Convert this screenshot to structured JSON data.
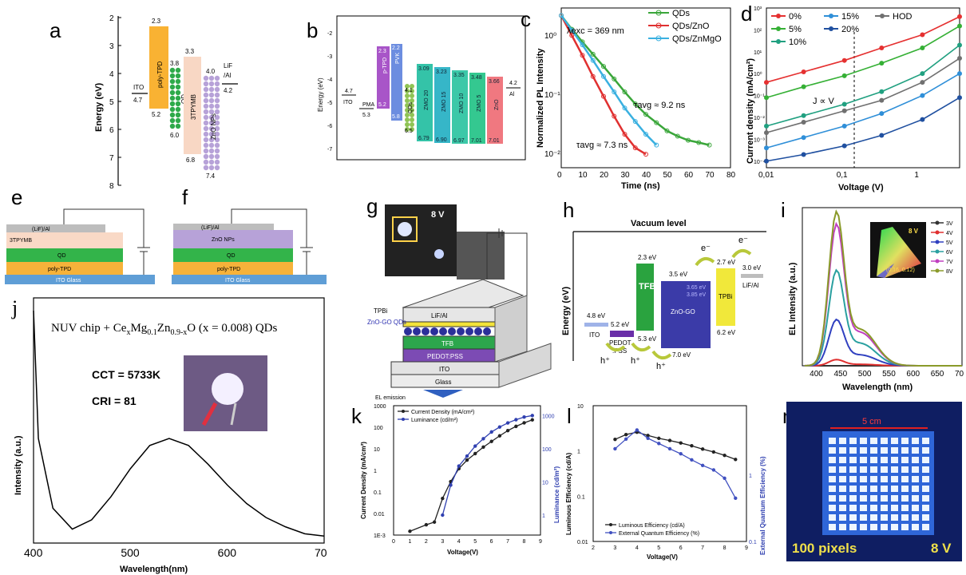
{
  "panels": {
    "a": {
      "letter": "a",
      "ylabel": "Energy (eV)",
      "ticks": [
        "2",
        "3",
        "4",
        "5",
        "6",
        "7",
        "8"
      ],
      "layers": [
        {
          "name": "ITO",
          "top": "4.7"
        },
        {
          "name": "poly-TPD",
          "top": "2.3",
          "bottom": "5.2"
        },
        {
          "name": "QD",
          "top": "3.8",
          "bottom": "6.0"
        },
        {
          "name": "3TPYMB",
          "top": "3.3",
          "bottom": "6.8"
        },
        {
          "name": "ZnO NPs",
          "top": "4.0",
          "bottom": "7.4"
        },
        {
          "name": "LiF\n/Al",
          "name1": "LiF",
          "name2": "/Al",
          "top": "4.2"
        }
      ]
    },
    "b": {
      "letter": "b",
      "ylabel": "Energy (eV)",
      "ticks": [
        "-2",
        "-3",
        "-4",
        "-5",
        "-6",
        "-7"
      ],
      "bars": [
        {
          "name": "ITO",
          "v1": "4.7"
        },
        {
          "name": "PMA",
          "v1": "5.3"
        },
        {
          "name": "p-TPD",
          "v1": "2.3",
          "v2": "5.2"
        },
        {
          "name": "PVK",
          "v1": "2.2",
          "v2": "5.8"
        },
        {
          "name": "QDs",
          "v1": "4.1",
          "v2": "6.5"
        },
        {
          "name": "ZMO 20",
          "v1": "3.09",
          "v2": "6.79"
        },
        {
          "name": "ZMO 15",
          "v1": "3.23",
          "v2": "6.90"
        },
        {
          "name": "ZMO 10",
          "v1": "3.35",
          "v2": "6.97"
        },
        {
          "name": "ZMO 5",
          "v1": "3.48",
          "v2": "7.01"
        },
        {
          "name": "ZnO",
          "v1": "3.66",
          "v2": "7.01"
        },
        {
          "name": "Al",
          "v1": "4.2"
        }
      ]
    },
    "c": {
      "letter": "c",
      "lambda": "λexc = 369 nm",
      "ylabel": "Normalized PL Intensity",
      "xlabel": "Time (ns)",
      "tau1": "τavg ≈ 9.2 ns",
      "tau2": "τavg ≈ 7.3 ns",
      "xticks": [
        "0",
        "10",
        "20",
        "30",
        "40",
        "50",
        "60",
        "70",
        "80"
      ],
      "yticks": [
        "10⁰",
        "10⁻¹",
        "10⁻²"
      ]
    },
    "d": {
      "letter": "d",
      "ylabel": "Current density (mA/cm²)",
      "xlabel": "Voltage (V)",
      "annot": "J ∝ V",
      "xticks": [
        "0,01",
        "0,1",
        "1"
      ],
      "yticks": [
        "10³",
        "10²",
        "10¹",
        "10⁰",
        "10⁻¹",
        "10⁻²",
        "10⁻³",
        "10⁻⁴"
      ]
    },
    "e": {
      "letter": "e",
      "layers": [
        "(LiF)/Al",
        "3TPYMB",
        "QD",
        "poly-TPD",
        "ITO Glass"
      ]
    },
    "f": {
      "letter": "f",
      "layers": [
        "(LiF)/Al",
        "ZnO NPs",
        "QD",
        "poly-TPD",
        "ITO Glass"
      ]
    },
    "g": {
      "letter": "g",
      "voltage": "8 V",
      "layers": [
        "LiF/Al",
        "TPBi",
        "ZnO-GO QDs",
        "TFB",
        "PEDOT:PSS",
        "ITO",
        "Glass"
      ],
      "emission": "EL emission"
    },
    "h": {
      "letter": "h",
      "title": "Vacuum  level",
      "ylabel": "Energy  (eV)",
      "levels": {
        "ito": "4.8 eV",
        "pedot_top": "5.2 eV",
        "tfb_top": "2.3 eV",
        "tfb_bot": "5.3 eV",
        "zno_top": "3.5 eV",
        "zno_mid1": "3.65 eV",
        "zno_mid2": "3.85 eV",
        "zno_bot": "7.0 eV",
        "tpbi_top": "2.7 eV",
        "tpbi_bot": "6.2 eV",
        "lif": "3.0 eV"
      },
      "names": {
        "ito": "ITO",
        "pedot": "PEDOT\n:PSS",
        "pedot1": "PEDOT",
        ":pss": ":PSS",
        "tfb": "TFB",
        "zno": "ZnO-GO",
        "tpbi": "TPBi",
        "lif": "LiF/Al"
      },
      "carriers": {
        "e": "e⁻",
        "h": "h⁺"
      }
    },
    "i": {
      "letter": "i",
      "ylabel": "EL Intensity (a.u.)",
      "xlabel": "Wavelength (nm)",
      "inset_voltage": "8 V",
      "cie": "(0.16, 0.12)",
      "xticks": [
        "400",
        "450",
        "500",
        "550",
        "600",
        "650",
        "70"
      ]
    },
    "j": {
      "letter": "j",
      "title": "NUV chip + CexMg0.1Zn0.9-xO (x = 0.008) QDs",
      "title_parts": {
        "a": "NUV chip + Ce",
        "b": "x",
        "c": "Mg",
        "d": "0.1",
        "e": "Zn",
        "f": "0.9-x",
        "g": "O (x = 0.008) QDs"
      },
      "cct": "CCT = 5733K",
      "cri": "CRI = 81",
      "ylabel": "Intensity (a.u.)",
      "xlabel": "Wavelength(nm)",
      "xticks": [
        "400",
        "500",
        "600",
        "70"
      ]
    },
    "k": {
      "letter": "k",
      "ylabel": "Current Density (mA/cm²)",
      "y2label": "Luminance (cd/m²)",
      "xlabel": "Voltage(V)",
      "yticks": [
        "1000",
        "100",
        "10",
        "1",
        "0.1",
        "0.01",
        "1E-3"
      ],
      "y2ticks": [
        "1000",
        "100",
        "10",
        "1"
      ],
      "xticks": [
        "0",
        "1",
        "2",
        "3",
        "4",
        "5",
        "6",
        "7",
        "8",
        "9"
      ]
    },
    "l": {
      "letter": "l",
      "ylabel": "Luminous Efficiency (cd/A)",
      "y2label": "External Quantum Efficiency (%)",
      "xlabel": "Voltage(V)",
      "yticks": [
        "10",
        "1",
        "0.1",
        "0.01"
      ],
      "y2ticks": [
        "1",
        "0.1"
      ],
      "xticks": [
        "2",
        "3",
        "4",
        "5",
        "6",
        "7",
        "8",
        "9"
      ]
    },
    "m": {
      "letter": "m",
      "size": "5 cm",
      "pixels": "100 pixels",
      "voltage": "8 V"
    }
  },
  "chart_data": [
    {
      "type": "line",
      "panel": "c",
      "xlabel": "Time (ns)",
      "ylabel": "Normalized PL Intensity",
      "yscale": "log",
      "xlim": [
        0,
        80
      ],
      "ylim": [
        0.005,
        1.3
      ],
      "series": [
        {
          "name": "QDs",
          "color": "#3aa63a",
          "x": [
            0,
            5,
            10,
            15,
            20,
            25,
            30,
            35,
            40,
            45,
            50,
            55,
            60,
            65,
            70
          ],
          "y": [
            1,
            0.62,
            0.4,
            0.26,
            0.17,
            0.11,
            0.07,
            0.046,
            0.032,
            0.024,
            0.018,
            0.015,
            0.013,
            0.012,
            0.011
          ]
        },
        {
          "name": "QDs/ZnO",
          "color": "#e03030",
          "x": [
            0,
            5,
            10,
            15,
            20,
            25,
            30,
            35,
            40
          ],
          "y": [
            1,
            0.5,
            0.25,
            0.12,
            0.06,
            0.03,
            0.016,
            0.01,
            0.008
          ]
        },
        {
          "name": "QDs/ZnMgO",
          "color": "#3ab0e0",
          "x": [
            0,
            5,
            10,
            15,
            20,
            25,
            30,
            35,
            40,
            45
          ],
          "y": [
            1,
            0.6,
            0.36,
            0.21,
            0.12,
            0.07,
            0.04,
            0.025,
            0.016,
            0.011
          ]
        }
      ]
    },
    {
      "type": "line",
      "panel": "d",
      "xlabel": "Voltage (V)",
      "ylabel": "Current density (mA/cm²)",
      "xscale": "log",
      "yscale": "log",
      "xlim": [
        0.01,
        3
      ],
      "ylim": [
        5e-05,
        1000
      ],
      "series": [
        {
          "name": "0%",
          "color": "#e53030",
          "x": [
            0.01,
            0.03,
            0.1,
            0.3,
            1,
            3
          ],
          "y": [
            0.4,
            1.2,
            4,
            15,
            60,
            400
          ]
        },
        {
          "name": "5%",
          "color": "#35b035",
          "x": [
            0.01,
            0.03,
            0.1,
            0.3,
            1,
            3
          ],
          "y": [
            0.08,
            0.25,
            0.8,
            3,
            15,
            150
          ]
        },
        {
          "name": "10%",
          "color": "#20a080",
          "x": [
            0.01,
            0.03,
            0.1,
            0.3,
            1,
            3
          ],
          "y": [
            0.004,
            0.012,
            0.04,
            0.15,
            1,
            20
          ]
        },
        {
          "name": "15%",
          "color": "#2f8fd8",
          "x": [
            0.01,
            0.03,
            0.1,
            0.3,
            1,
            3
          ],
          "y": [
            0.0004,
            0.0012,
            0.004,
            0.015,
            0.1,
            1
          ]
        },
        {
          "name": "20%",
          "color": "#2050a0",
          "x": [
            0.01,
            0.03,
            0.1,
            0.3,
            1,
            3
          ],
          "y": [
            0.0001,
            0.0002,
            0.0005,
            0.0015,
            0.008,
            0.08
          ]
        },
        {
          "name": "HOD",
          "color": "#707070",
          "x": [
            0.01,
            0.03,
            0.1,
            0.3,
            1,
            3
          ],
          "y": [
            0.002,
            0.006,
            0.02,
            0.06,
            0.4,
            5
          ]
        }
      ]
    },
    {
      "type": "line",
      "panel": "i",
      "xlabel": "Wavelength (nm)",
      "ylabel": "EL Intensity (a.u.)",
      "xlim": [
        370,
        700
      ],
      "ylim": [
        0,
        1.1
      ],
      "series": [
        {
          "name": "3V",
          "color": "#333333",
          "peak": 0.0
        },
        {
          "name": "4V",
          "color": "#e03030",
          "peak": 0.04
        },
        {
          "name": "5V",
          "color": "#3040c0",
          "peak": 0.3
        },
        {
          "name": "6V",
          "color": "#2aa0a0",
          "peak": 0.62
        },
        {
          "name": "7V",
          "color": "#c040c0",
          "peak": 0.92
        },
        {
          "name": "8V",
          "color": "#8a9a2a",
          "peak": 1.0
        }
      ],
      "peak_wavelength": 440
    },
    {
      "type": "line",
      "panel": "j",
      "xlabel": "Wavelength(nm)",
      "ylabel": "Intensity (a.u.)",
      "xlim": [
        400,
        700
      ],
      "series": [
        {
          "name": "",
          "x": [
            400,
            405,
            420,
            440,
            460,
            480,
            500,
            520,
            540,
            560,
            580,
            600,
            620,
            640,
            660,
            680,
            700
          ],
          "y": [
            1.0,
            0.45,
            0.15,
            0.06,
            0.1,
            0.2,
            0.32,
            0.42,
            0.45,
            0.42,
            0.34,
            0.25,
            0.17,
            0.11,
            0.07,
            0.04,
            0.03
          ]
        }
      ]
    },
    {
      "type": "line",
      "panel": "k",
      "xlabel": "Voltage(V)",
      "ylabel": "Current Density (mA/cm²)",
      "y2label": "Luminance (cd/m²)",
      "yscale": "log",
      "series": [
        {
          "name": "Current Density (mA/cm²)",
          "color": "#222222",
          "x": [
            1,
            2,
            2.5,
            3,
            3.5,
            4,
            4.5,
            5,
            5.5,
            6,
            6.5,
            7,
            7.5,
            8,
            8.5
          ],
          "y": [
            0.0015,
            0.003,
            0.004,
            0.05,
            0.3,
            1.2,
            3,
            6,
            12,
            22,
            40,
            70,
            110,
            160,
            220
          ]
        },
        {
          "name": "Luminance (cd/m²)",
          "color": "#3040b0",
          "x": [
            3,
            3.5,
            4,
            4.5,
            5,
            5.5,
            6,
            6.5,
            7,
            7.5,
            8,
            8.5
          ],
          "y": [
            1,
            8,
            30,
            60,
            120,
            200,
            320,
            450,
            600,
            750,
            900,
            1000
          ]
        }
      ]
    },
    {
      "type": "line",
      "panel": "l",
      "xlabel": "Voltage(V)",
      "ylabel": "Luminous Efficiency (cd/A)",
      "y2label": "External Quantum Efficiency (%)",
      "yscale": "log",
      "series": [
        {
          "name": "Luminous Efficiency (cd/A)",
          "color": "#222222",
          "x": [
            3,
            3.5,
            4,
            4.5,
            5,
            5.5,
            6,
            6.5,
            7,
            7.5,
            8,
            8.5
          ],
          "y": [
            1.8,
            2.3,
            2.6,
            2.2,
            1.9,
            1.7,
            1.5,
            1.3,
            1.1,
            0.95,
            0.8,
            0.65
          ]
        },
        {
          "name": "External Quantum Efficiency (%)",
          "color": "#4050c0",
          "x": [
            3,
            3.5,
            4,
            4.5,
            5,
            5.5,
            6,
            6.5,
            7,
            7.5,
            8,
            8.5
          ],
          "y": [
            2.5,
            3.5,
            4.8,
            3.6,
            3.0,
            2.5,
            2.1,
            1.7,
            1.4,
            1.2,
            0.9,
            0.45
          ]
        }
      ]
    }
  ]
}
